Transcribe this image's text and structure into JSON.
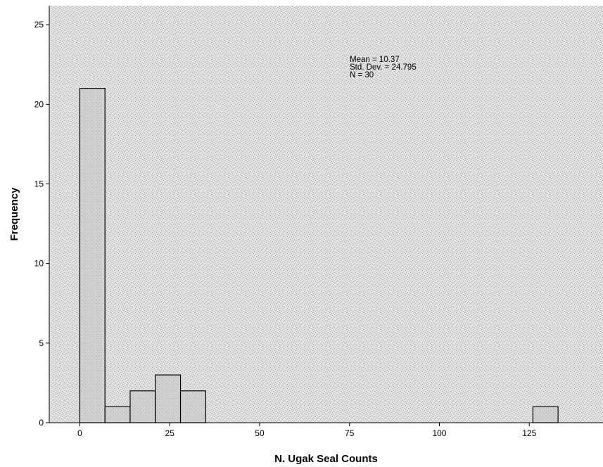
{
  "chart_data": {
    "type": "bar",
    "subtype": "histogram",
    "xlabel": "N. Ugak Seal Counts",
    "ylabel": "Frequency",
    "xlim": [
      -8.5,
      145.5
    ],
    "ylim": [
      0,
      26.2
    ],
    "xticks": [
      0,
      25,
      50,
      75,
      100,
      125
    ],
    "yticks": [
      0,
      5,
      10,
      15,
      20,
      25
    ],
    "bin_width": 7,
    "bins": [
      {
        "start": 0,
        "end": 7,
        "count": 21
      },
      {
        "start": 7,
        "end": 14,
        "count": 1
      },
      {
        "start": 14,
        "end": 21,
        "count": 2
      },
      {
        "start": 21,
        "end": 28,
        "count": 3
      },
      {
        "start": 28,
        "end": 35,
        "count": 2
      },
      {
        "start": 126,
        "end": 133,
        "count": 1
      }
    ],
    "stats": [
      "Mean = 10.37",
      "Std. Dev. = 24.795",
      "N = 30"
    ],
    "colors": {
      "bar_fill": "#d4d4d4",
      "plot_bg": "#e2e2e2",
      "stroke": "#000000"
    }
  }
}
